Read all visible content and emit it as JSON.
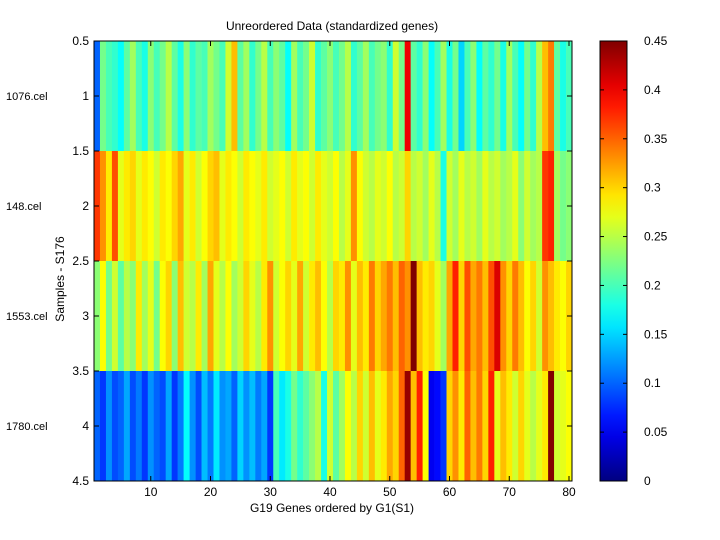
{
  "chart_data": {
    "type": "heatmap",
    "title": "Unreordered Data (standardized genes)",
    "xlabel": "G19 Genes ordered by G1(S1)",
    "ylabel": "Samples - S176",
    "colormap": "jet",
    "clim": [
      0,
      0.45
    ],
    "colorbar_ticks": [
      0,
      0.05,
      0.1,
      0.15,
      0.2,
      0.25,
      0.3,
      0.35,
      0.4,
      0.45
    ],
    "colorbar_tick_labels": [
      "0",
      "0.05",
      "0.1",
      "0.15",
      "0.2",
      "0.25",
      "0.3",
      "0.35",
      "0.4",
      "0.45"
    ],
    "xlim": [
      0.5,
      80.5
    ],
    "ylim": [
      0.5,
      4.5
    ],
    "xticks": [
      10,
      20,
      30,
      40,
      50,
      60,
      70,
      80
    ],
    "xtick_labels": [
      "10",
      "20",
      "30",
      "40",
      "50",
      "60",
      "70",
      "80"
    ],
    "yticks": [
      0.5,
      1,
      1.5,
      2,
      2.5,
      3,
      3.5,
      4,
      4.5
    ],
    "ytick_labels": [
      "0.5",
      "1",
      "1.5",
      "2",
      "2.5",
      "3",
      "3.5",
      "4",
      "4.5"
    ],
    "rows": [
      "1076.cel",
      "148.cel",
      "1553.cel",
      "1780.cel"
    ],
    "columns": 80,
    "values": [
      [
        0.1,
        0.22,
        0.2,
        0.19,
        0.17,
        0.21,
        0.24,
        0.2,
        0.18,
        0.23,
        0.2,
        0.22,
        0.25,
        0.21,
        0.18,
        0.23,
        0.19,
        0.21,
        0.2,
        0.24,
        0.22,
        0.2,
        0.26,
        0.31,
        0.21,
        0.24,
        0.19,
        0.22,
        0.25,
        0.2,
        0.23,
        0.21,
        0.17,
        0.24,
        0.2,
        0.22,
        0.26,
        0.19,
        0.21,
        0.23,
        0.2,
        0.22,
        0.25,
        0.19,
        0.21,
        0.24,
        0.2,
        0.22,
        0.23,
        0.19,
        0.26,
        0.22,
        0.4,
        0.21,
        0.19,
        0.23,
        0.17,
        0.2,
        0.24,
        0.18,
        0.22,
        0.15,
        0.2,
        0.23,
        0.17,
        0.21,
        0.19,
        0.22,
        0.18,
        0.24,
        0.2,
        0.17,
        0.22,
        0.19,
        0.25,
        0.31,
        0.34,
        0.21,
        0.18,
        0.2
      ],
      [
        0.37,
        0.33,
        0.29,
        0.36,
        0.27,
        0.29,
        0.3,
        0.27,
        0.29,
        0.28,
        0.26,
        0.29,
        0.28,
        0.3,
        0.32,
        0.27,
        0.29,
        0.26,
        0.28,
        0.3,
        0.31,
        0.27,
        0.29,
        0.28,
        0.26,
        0.29,
        0.28,
        0.27,
        0.29,
        0.26,
        0.27,
        0.28,
        0.26,
        0.29,
        0.27,
        0.28,
        0.26,
        0.29,
        0.27,
        0.26,
        0.28,
        0.25,
        0.27,
        0.33,
        0.28,
        0.26,
        0.25,
        0.27,
        0.26,
        0.28,
        0.25,
        0.26,
        0.3,
        0.25,
        0.26,
        0.24,
        0.27,
        0.25,
        0.18,
        0.26,
        0.24,
        0.27,
        0.25,
        0.26,
        0.24,
        0.27,
        0.25,
        0.26,
        0.24,
        0.25,
        0.27,
        0.23,
        0.26,
        0.24,
        0.25,
        0.37,
        0.38,
        0.24,
        0.22,
        0.23
      ],
      [
        0.23,
        0.28,
        0.22,
        0.26,
        0.21,
        0.25,
        0.23,
        0.29,
        0.24,
        0.27,
        0.22,
        0.28,
        0.3,
        0.23,
        0.31,
        0.26,
        0.25,
        0.29,
        0.24,
        0.32,
        0.27,
        0.25,
        0.28,
        0.24,
        0.26,
        0.3,
        0.27,
        0.25,
        0.29,
        0.33,
        0.26,
        0.28,
        0.3,
        0.27,
        0.32,
        0.26,
        0.29,
        0.31,
        0.28,
        0.25,
        0.3,
        0.29,
        0.33,
        0.27,
        0.31,
        0.29,
        0.34,
        0.3,
        0.32,
        0.34,
        0.31,
        0.35,
        0.33,
        0.45,
        0.31,
        0.29,
        0.3,
        0.27,
        0.24,
        0.32,
        0.38,
        0.3,
        0.36,
        0.32,
        0.34,
        0.31,
        0.36,
        0.41,
        0.33,
        0.3,
        0.34,
        0.31,
        0.28,
        0.3,
        0.26,
        0.33,
        0.31,
        0.29,
        0.28,
        0.3
      ],
      [
        0.1,
        0.08,
        0.12,
        0.09,
        0.1,
        0.13,
        0.09,
        0.11,
        0.08,
        0.12,
        0.1,
        0.09,
        0.13,
        0.08,
        0.11,
        0.17,
        0.12,
        0.09,
        0.14,
        0.11,
        0.16,
        0.12,
        0.13,
        0.1,
        0.15,
        0.12,
        0.14,
        0.11,
        0.13,
        0.08,
        0.2,
        0.16,
        0.18,
        0.22,
        0.19,
        0.21,
        0.23,
        0.25,
        0.18,
        0.26,
        0.21,
        0.24,
        0.28,
        0.25,
        0.3,
        0.26,
        0.31,
        0.27,
        0.29,
        0.32,
        0.3,
        0.35,
        0.44,
        0.31,
        0.38,
        0.28,
        0.05,
        0.06,
        0.08,
        0.3,
        0.33,
        0.29,
        0.35,
        0.31,
        0.34,
        0.3,
        0.38,
        0.27,
        0.31,
        0.29,
        0.26,
        0.3,
        0.27,
        0.25,
        0.27,
        0.29,
        0.45,
        0.26,
        0.27,
        0.28
      ]
    ]
  }
}
